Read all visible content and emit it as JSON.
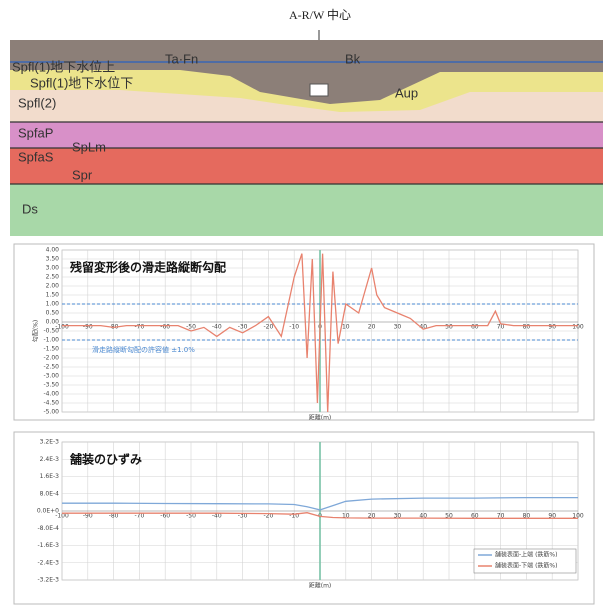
{
  "cross_section": {
    "center_label": "A-R/W 中心",
    "layer_labels": [
      "Spfl(1)地下水位上",
      "Spfl(1)地下水位下",
      "Ta·Fn",
      "Bk",
      "Aup",
      "Spfl(2)",
      "SpfaP",
      "SpLm",
      "SpfaS",
      "Spr",
      "Ds"
    ]
  },
  "chart_data": [
    {
      "type": "line",
      "title": "残留変形後の滑走路縦断勾配",
      "y_label": "勾配(%)",
      "x_label": "距離(m)",
      "annotation": "滑走路縦断勾配の許容値 ±1.0%",
      "x": [
        -100,
        -95,
        -90,
        -85,
        -80,
        -75,
        -70,
        -65,
        -60,
        -55,
        -50,
        -45,
        -40,
        -35,
        -30,
        -25,
        -20,
        -15,
        -10,
        -7,
        -5,
        -3,
        -1,
        1,
        3,
        5,
        7,
        10,
        15,
        20,
        22,
        25,
        30,
        35,
        40,
        45,
        50,
        55,
        60,
        65,
        68,
        70,
        75,
        80,
        90,
        100
      ],
      "values": [
        -0.2,
        -0.2,
        -0.2,
        -0.2,
        -0.3,
        -0.2,
        -0.2,
        -0.2,
        -0.2,
        -0.2,
        -0.5,
        -0.3,
        -0.8,
        -0.3,
        -0.6,
        -0.2,
        0.3,
        -0.8,
        2.5,
        3.8,
        -2.0,
        3.5,
        -4.5,
        3.8,
        -5.0,
        2.8,
        -1.2,
        1.0,
        0.5,
        3.0,
        1.5,
        0.8,
        0.5,
        0.2,
        -0.4,
        -0.2,
        -0.2,
        -0.2,
        -0.2,
        -0.2,
        0.6,
        -0.1,
        -0.2,
        -0.2,
        -0.2,
        -0.2
      ],
      "color": "#e8826e",
      "hlines": {
        "values": [
          1.0,
          -1.0
        ],
        "color": "#4a88d0"
      },
      "xlim": [
        -100,
        100
      ],
      "xticks": [
        -100,
        -90,
        -80,
        -70,
        -60,
        -50,
        -40,
        -30,
        -20,
        -10,
        0,
        10,
        20,
        30,
        40,
        50,
        60,
        70,
        80,
        90,
        100
      ],
      "ylim": [
        -5,
        4
      ],
      "yticks": [
        {
          "value": 4,
          "label": "4.00"
        },
        {
          "value": 3.5,
          "label": "3.50"
        },
        {
          "value": 3,
          "label": "3.00"
        },
        {
          "value": 2.5,
          "label": "2.50"
        },
        {
          "value": 2,
          "label": "2.00"
        },
        {
          "value": 1.5,
          "label": "1.50"
        },
        {
          "value": 1,
          "label": "1.00"
        },
        {
          "value": 0.5,
          "label": "0.50"
        },
        {
          "value": 0,
          "label": "0.00"
        },
        {
          "value": -0.5,
          "label": "-0.50"
        },
        {
          "value": -1,
          "label": "-1.00"
        },
        {
          "value": -1.5,
          "label": "-1.50"
        },
        {
          "value": -2,
          "label": "-2.00"
        },
        {
          "value": -2.5,
          "label": "-2.50"
        },
        {
          "value": -3,
          "label": "-3.00"
        },
        {
          "value": -3.5,
          "label": "-3.50"
        },
        {
          "value": -4,
          "label": "-4.00"
        },
        {
          "value": -4.5,
          "label": "-4.50"
        },
        {
          "value": -5,
          "label": "-5.00"
        }
      ],
      "grid": true
    },
    {
      "type": "line",
      "title": "舗装のひずみ",
      "x_label": "距離(m)",
      "x": [
        -100,
        -80,
        -60,
        -40,
        -20,
        -10,
        -5,
        0,
        5,
        10,
        20,
        40,
        60,
        80,
        100
      ],
      "series": [
        {
          "name": "舗装表面-上端 (鉄筋%)",
          "color": "#7fa8d8",
          "values": [
            0.00036,
            0.00036,
            0.00035,
            0.00034,
            0.00033,
            0.0003,
            0.0002,
            5e-05,
            0.00025,
            0.00045,
            0.00055,
            0.0006,
            0.0006,
            0.00062,
            0.00062
          ]
        },
        {
          "name": "舗装表面-下端 (鉄筋%)",
          "color": "#e8826e",
          "values": [
            -0.0001,
            -0.0001,
            -0.0001,
            -0.0001,
            -0.00012,
            -0.00015,
            -8e-05,
            -0.00025,
            -0.0003,
            -0.00032,
            -0.00033,
            -0.00033,
            -0.00034,
            -0.00034,
            -0.00034
          ]
        }
      ],
      "legend": "bottom-right",
      "xlim": [
        -100,
        100
      ],
      "xticks": [
        -100,
        -90,
        -80,
        -70,
        -60,
        -50,
        -40,
        -30,
        -20,
        -10,
        0,
        10,
        20,
        30,
        40,
        50,
        60,
        70,
        80,
        90,
        100
      ],
      "ylim": [
        -0.0032,
        0.0032
      ],
      "yticks": [
        {
          "value": 0.0032,
          "label": "3.2E-3"
        },
        {
          "value": 0.0024,
          "label": "2.4E-3"
        },
        {
          "value": 0.0016,
          "label": "1.6E-3"
        },
        {
          "value": 0.0008,
          "label": "8.0E-4"
        },
        {
          "value": 0,
          "label": "0.0E+0"
        },
        {
          "value": -0.0008,
          "label": "-8.0E-4"
        },
        {
          "value": -0.0016,
          "label": "-1.6E-3"
        },
        {
          "value": -0.0024,
          "label": "-2.4E-3"
        },
        {
          "value": -0.0032,
          "label": "-3.2E-3"
        }
      ],
      "grid": true
    }
  ]
}
